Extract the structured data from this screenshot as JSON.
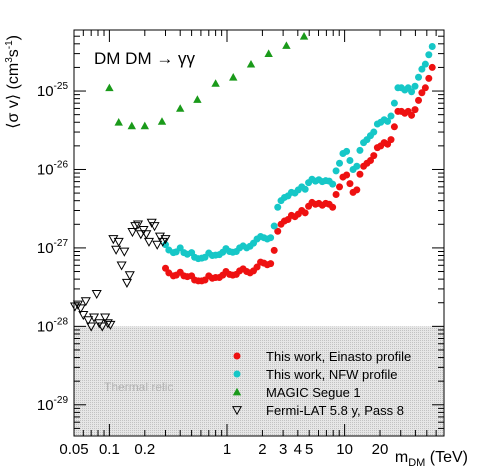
{
  "chart_data": {
    "type": "scatter",
    "title": "",
    "annotation": "DM DM → γγ",
    "xlabel": {
      "main": "m",
      "sub": "DM",
      "unit": " (TeV)"
    },
    "ylabel": {
      "pre": "⟨σ v⟩ (cm",
      "sup1": "3",
      "mid": "s",
      "sup2": "-1",
      "post": ")"
    },
    "xscale": "log",
    "yscale": "log",
    "xlim": [
      0.05,
      70
    ],
    "ylim": [
      4e-30,
      6e-25
    ],
    "grid": false,
    "legend_position": "bottom-right",
    "x_ticks": [
      {
        "value": 0.05,
        "label": "0.05"
      },
      {
        "value": 0.1,
        "label": "0.1"
      },
      {
        "value": 0.2,
        "label": "0.2"
      },
      {
        "value": 1,
        "label": "1"
      },
      {
        "value": 2,
        "label": "2"
      },
      {
        "value": 3,
        "label": "3"
      },
      {
        "value": 4,
        "label": "4"
      },
      {
        "value": 5,
        "label": "5"
      },
      {
        "value": 10,
        "label": "10"
      },
      {
        "value": 20,
        "label": "20"
      }
    ],
    "y_ticks": [
      {
        "value": 1e-29,
        "base": "10",
        "exp": "-29"
      },
      {
        "value": 1e-28,
        "base": "10",
        "exp": "-28"
      },
      {
        "value": 1e-27,
        "base": "10",
        "exp": "-27"
      },
      {
        "value": 1e-26,
        "base": "10",
        "exp": "-26"
      },
      {
        "value": 1e-25,
        "base": "10",
        "exp": "-25"
      }
    ],
    "thermal_band": {
      "label": "Thermal relic",
      "y_max": 1e-28,
      "color": "#d9d9d9"
    },
    "series": [
      {
        "name": "This work, Einasto profile",
        "marker": "circle",
        "color": "#ee1111",
        "x": [
          0.3,
          0.32,
          0.35,
          0.37,
          0.4,
          0.43,
          0.46,
          0.5,
          0.53,
          0.57,
          0.61,
          0.65,
          0.7,
          0.75,
          0.8,
          0.86,
          0.92,
          0.98,
          1.05,
          1.12,
          1.2,
          1.28,
          1.37,
          1.47,
          1.57,
          1.68,
          1.8,
          1.93,
          2.06,
          2.2,
          2.35,
          2.52,
          2.7,
          2.88,
          3.08,
          3.3,
          3.53,
          3.78,
          4.04,
          4.32,
          4.62,
          4.94,
          5.28,
          5.65,
          6.04,
          6.46,
          6.91,
          7.39,
          7.91,
          8.46,
          9.05,
          9.68,
          10.4,
          11.1,
          11.8,
          12.7,
          13.5,
          14.5,
          15.5,
          16.6,
          17.7,
          19.0,
          20.3,
          21.7,
          23.2,
          24.8,
          26.5,
          28.4,
          30.4,
          32.5,
          34.7,
          37.1,
          39.7,
          42.5,
          45.4,
          48.6,
          52,
          55.6
        ],
        "y": [
          5.5e-28,
          4.8e-28,
          4.4e-28,
          4.5e-28,
          4.9e-28,
          4.4e-28,
          4.3e-28,
          4.4e-28,
          3.9e-28,
          3.8e-28,
          3.8e-28,
          3.9e-28,
          4.4e-28,
          4.1e-28,
          4.2e-28,
          4.2e-28,
          4.5e-28,
          5e-28,
          4.6e-28,
          4.5e-28,
          4.6e-28,
          5.1e-28,
          5.4e-28,
          5e-28,
          4.8e-28,
          5.1e-28,
          5.7e-28,
          6.6e-28,
          6.4e-28,
          6.1e-28,
          6.3e-28,
          9.3e-28,
          1.63e-27,
          2e-27,
          2.2e-27,
          2.3e-27,
          2.6e-27,
          2.5e-27,
          2.7e-27,
          3e-27,
          2.8e-27,
          3.4e-27,
          3.8e-27,
          3.6e-27,
          3.7e-27,
          3.5e-27,
          3.7e-27,
          3.6e-27,
          3.3e-27,
          4.8e-27,
          6e-27,
          8e-27,
          8.5e-27,
          6.6e-27,
          5.1e-27,
          5.5e-27,
          8.7e-27,
          1.1e-26,
          1.2e-26,
          1.3e-26,
          1.5e-26,
          1.9e-26,
          2e-26,
          2.2e-26,
          2.1e-26,
          2.4e-26,
          3.5e-26,
          5.5e-26,
          5.5e-26,
          5.2e-26,
          5.5e-26,
          4.9e-26,
          5.8e-26,
          7.6e-26,
          9.5e-26,
          1.1e-25,
          1.45e-25,
          2e-25
        ]
      },
      {
        "name": "This work, NFW profile",
        "marker": "circle",
        "color": "#16c7c7",
        "x": [
          0.3,
          0.32,
          0.35,
          0.37,
          0.4,
          0.43,
          0.46,
          0.5,
          0.53,
          0.57,
          0.61,
          0.65,
          0.7,
          0.75,
          0.8,
          0.86,
          0.92,
          0.98,
          1.05,
          1.12,
          1.2,
          1.28,
          1.37,
          1.47,
          1.57,
          1.68,
          1.8,
          1.93,
          2.06,
          2.2,
          2.35,
          2.52,
          2.7,
          2.88,
          3.08,
          3.3,
          3.53,
          3.78,
          4.04,
          4.32,
          4.62,
          4.94,
          5.28,
          5.65,
          6.04,
          6.46,
          6.91,
          7.39,
          7.91,
          8.46,
          9.05,
          9.68,
          10.4,
          11.1,
          11.8,
          12.7,
          13.5,
          14.5,
          15.5,
          16.6,
          17.7,
          19.0,
          20.3,
          21.7,
          23.2,
          24.8,
          26.5,
          28.4,
          30.4,
          32.5,
          34.7,
          37.1,
          39.7,
          42.5,
          45.4,
          48.6,
          52,
          55.6
        ],
        "y": [
          1.1e-27,
          9.4e-28,
          8.7e-28,
          8.9e-28,
          1e-27,
          8.7e-28,
          8.3e-28,
          8.7e-28,
          7.6e-28,
          7.3e-28,
          7.4e-28,
          7.6e-28,
          8.6e-28,
          8e-28,
          8.1e-28,
          8.2e-28,
          8.8e-28,
          9.8e-28,
          9e-28,
          8.8e-28,
          9e-28,
          1e-27,
          1.06e-27,
          1e-27,
          1.05e-27,
          1.15e-27,
          1.3e-27,
          1.4e-27,
          1.35e-27,
          1.3e-27,
          1.35e-27,
          1.9e-27,
          3.3e-27,
          4e-27,
          4.4e-27,
          4.6e-27,
          5.1e-27,
          5e-27,
          5.5e-27,
          6e-27,
          5.6e-27,
          6.8e-27,
          7.5e-27,
          7.1e-27,
          7.4e-27,
          7e-27,
          7.2e-27,
          7.1e-27,
          6.5e-27,
          9.6e-27,
          1.2e-26,
          1.6e-26,
          1.7e-26,
          1.3e-26,
          1e-26,
          1.1e-26,
          1.75e-26,
          2.2e-26,
          2.4e-26,
          2.7e-26,
          3e-26,
          3.8e-26,
          4e-26,
          4.3e-26,
          4.1e-26,
          4.8e-26,
          7e-26,
          1.1e-25,
          1.1e-25,
          1.03e-25,
          1.1e-25,
          9.8e-26,
          1.15e-25,
          1.5e-25,
          1.9e-25,
          2.2e-25,
          2.9e-25,
          3.7e-25
        ]
      },
      {
        "name": "MAGIC Segue 1",
        "marker": "triangle-up-filled",
        "color": "#1a9a1a",
        "x": [
          0.1,
          0.12,
          0.155,
          0.2,
          0.28,
          0.4,
          0.56,
          0.8,
          1.13,
          1.6,
          2.26,
          3.2,
          4.52
        ],
        "y": [
          1.1e-25,
          4e-26,
          3.6e-26,
          3.6e-26,
          4.1e-26,
          6e-26,
          7.8e-26,
          1.25e-25,
          1.5e-25,
          2.2e-25,
          3e-25,
          3.8e-25,
          5e-25
        ]
      },
      {
        "name": "Fermi-LAT 5.8 y, Pass 8",
        "marker": "triangle-down-open",
        "color": "#000000",
        "x": [
          0.051,
          0.054,
          0.057,
          0.06,
          0.063,
          0.066,
          0.07,
          0.074,
          0.078,
          0.082,
          0.087,
          0.092,
          0.097,
          0.102,
          0.108,
          0.114,
          0.12,
          0.127,
          0.134,
          0.141,
          0.149,
          0.157,
          0.166,
          0.175,
          0.185,
          0.195,
          0.206,
          0.217,
          0.229,
          0.242,
          0.255,
          0.269,
          0.284,
          0.3
        ],
        "y": [
          1.8e-28,
          1.9e-28,
          1.7e-28,
          1.4e-28,
          2.1e-28,
          1.2e-28,
          1e-28,
          1.3e-28,
          2.6e-28,
          1.1e-28,
          1e-28,
          1.3e-28,
          1.1e-28,
          1.05e-28,
          1.3e-27,
          9.5e-28,
          1.2e-27,
          6e-28,
          9e-28,
          3.6e-28,
          4.5e-28,
          1.6e-27,
          1.9e-27,
          2e-27,
          1.5e-27,
          1.7e-27,
          1.5e-27,
          1.2e-27,
          2.1e-27,
          1.9e-27,
          1.1e-27,
          1.4e-27,
          1.2e-27,
          1.3e-27
        ]
      }
    ]
  }
}
